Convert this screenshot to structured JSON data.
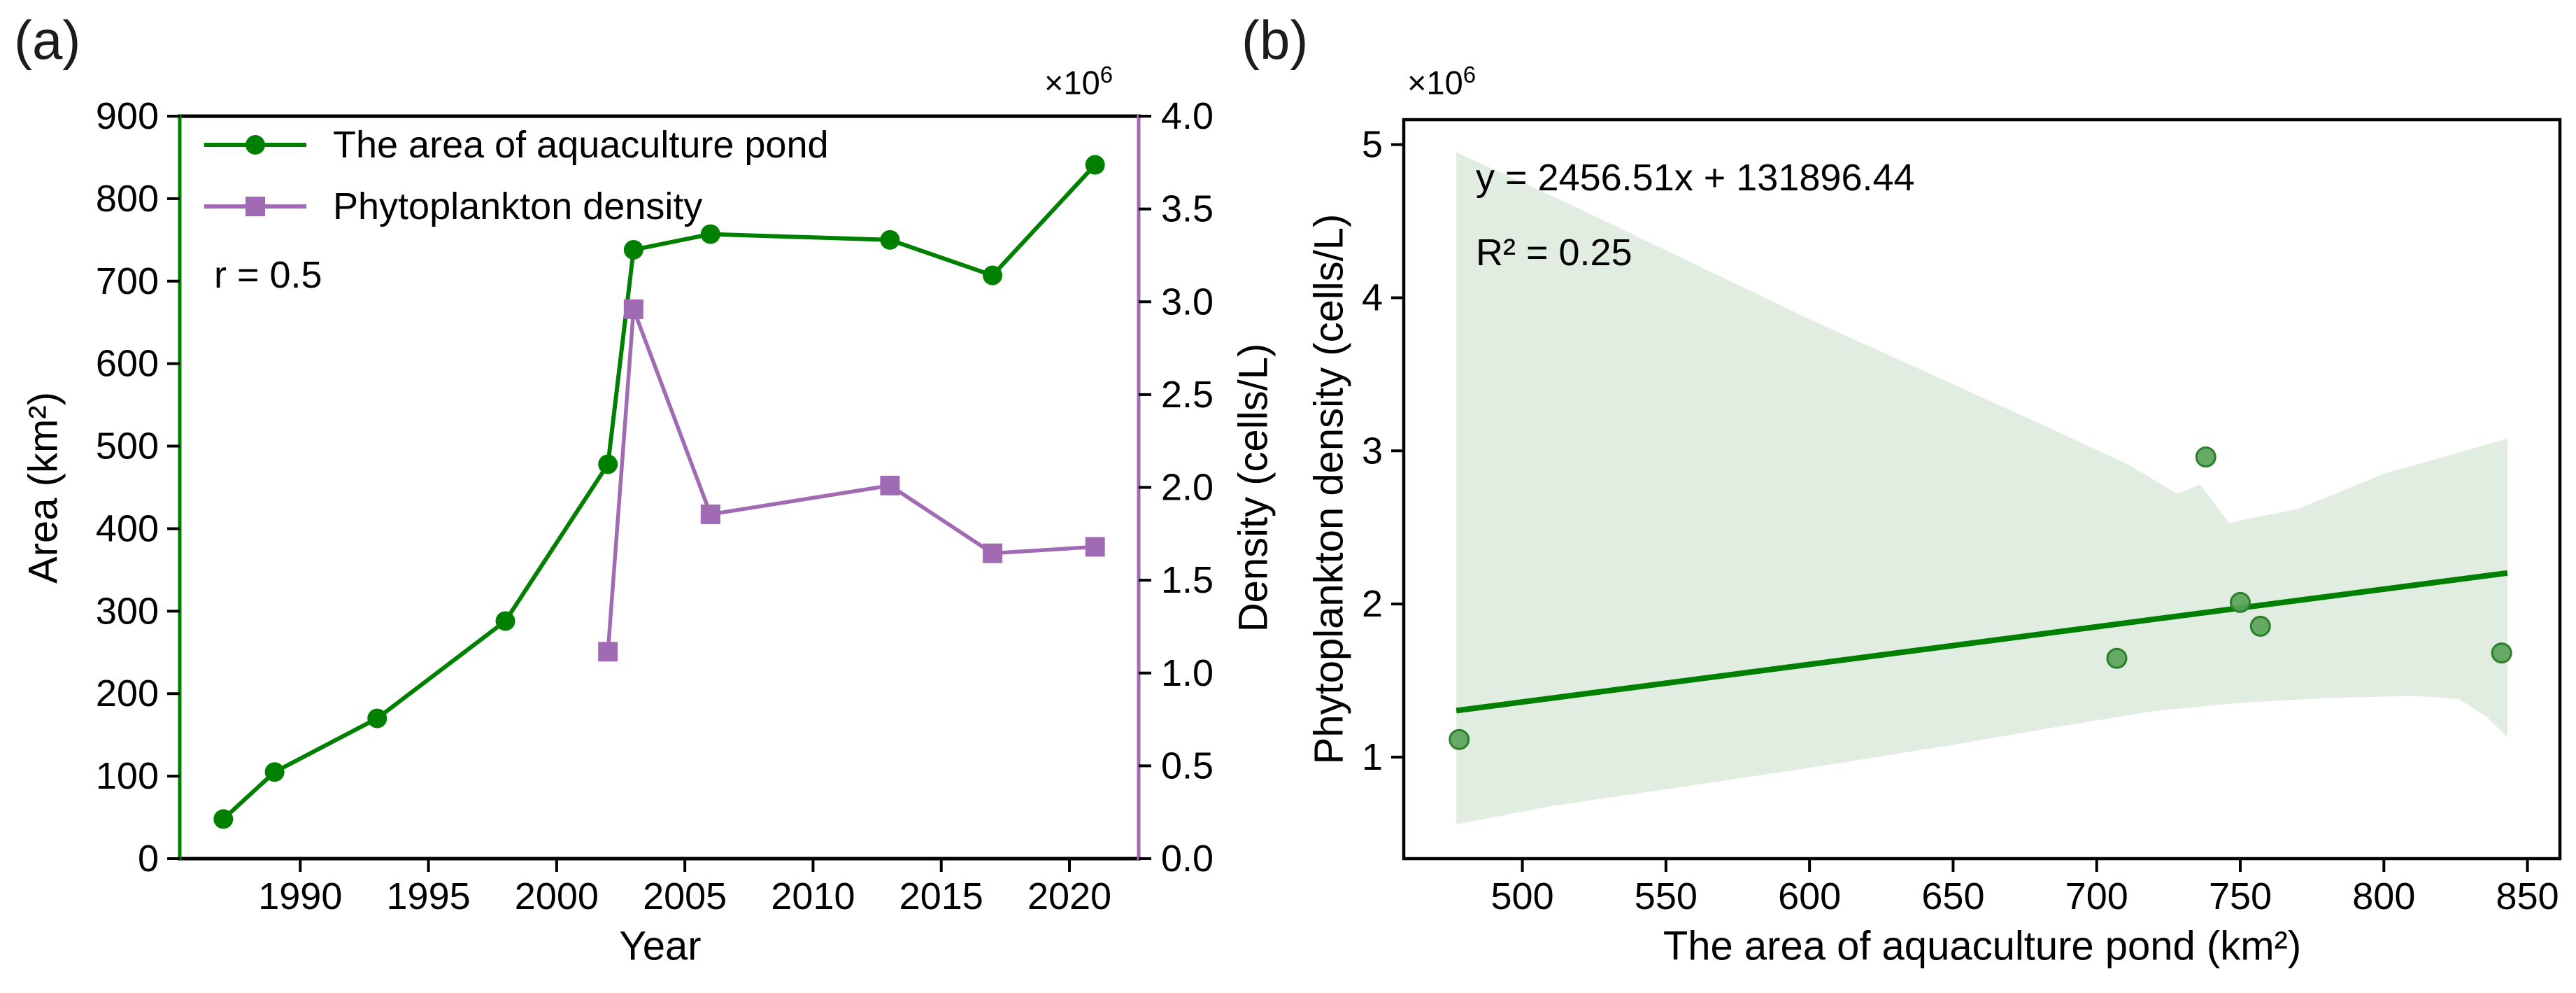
{
  "panel_a": {
    "label": "(a)",
    "annotation_r": "r = 0.5",
    "xlabel": "Year",
    "ylabel_left": "Area (km²)",
    "ylabel_right": "Density (cells/L)",
    "offset_base": "×10",
    "offset_exp": "6",
    "legend": [
      {
        "label": "The area of aquaculture pond"
      },
      {
        "label": "Phytoplankton density"
      }
    ]
  },
  "panel_b": {
    "label": "(b)",
    "equation": "y = 2456.51x + 131896.44",
    "r_squared": "R² = 0.25",
    "xlabel": "The area of aquaculture pond (km²)",
    "ylabel": "Phytoplankton density (cells/L)",
    "offset_base": "×10",
    "offset_exp": "6"
  },
  "colors": {
    "area_green": "#008000",
    "density_purple": "#a16bb4",
    "band_green": "#e1ede0",
    "scatter_fill": "#57a257",
    "scatter_edge": "#2c7e2c",
    "regression_green": "#008000",
    "axis_black": "#000000"
  },
  "chart_data": [
    {
      "id": "a",
      "type": "line",
      "xlabel": "Year",
      "ylabel_left": "Area (km²)",
      "ylabel_right": "Density (cells/L)",
      "annotation": "r = 0.5",
      "xlim": [
        1985.3,
        2022.7
      ],
      "x_ticks": [
        1990,
        1995,
        2000,
        2005,
        2010,
        2015,
        2020
      ],
      "ylim_left": [
        0,
        900
      ],
      "y_ticks_left": [
        0,
        100,
        200,
        300,
        400,
        500,
        600,
        700,
        800,
        900
      ],
      "ylim_right": [
        0,
        4
      ],
      "y_ticks_right": [
        0.0,
        0.5,
        1.0,
        1.5,
        2.0,
        2.5,
        3.0,
        3.5,
        4.0
      ],
      "y_right_unit": "×10⁶ cells/L",
      "legend_position": "upper left",
      "series": [
        {
          "name": "The area of aquaculture pond",
          "axis": "left",
          "marker": "circle",
          "x": [
            1987,
            1989,
            1993,
            1998,
            2002,
            2003,
            2006,
            2013,
            2017,
            2021
          ],
          "y": [
            48,
            105,
            170,
            288,
            478,
            738,
            757,
            750,
            707,
            841
          ]
        },
        {
          "name": "Phytoplankton density",
          "axis": "right",
          "marker": "square",
          "x": [
            2002,
            2003,
            2006,
            2013,
            2017,
            2021
          ],
          "y": [
            1.115,
            2.96,
            1.855,
            2.01,
            1.645,
            1.68
          ]
        }
      ]
    },
    {
      "id": "b",
      "type": "scatter",
      "xlabel": "The area of aquaculture pond (km²)",
      "ylabel": "Phytoplankton density (cells/L)",
      "equation": "y = 2456.51x + 131896.44",
      "r_squared": "R² = 0.25",
      "xlim": [
        458.7,
        861.3
      ],
      "x_ticks": [
        500,
        550,
        600,
        650,
        700,
        750,
        800,
        850
      ],
      "ylim": [
        0.337,
        5.163
      ],
      "y_ticks": [
        1,
        2,
        3,
        4,
        5
      ],
      "y_unit": "×10⁶ cells/L",
      "points": {
        "x": [
          478,
          707,
          738,
          750,
          757,
          841
        ],
        "y": [
          1.115,
          1.645,
          2.96,
          2.01,
          1.855,
          1.68
        ]
      },
      "regression_line": {
        "x": [
          477,
          843
        ],
        "y": [
          1.3035,
          2.2026
        ]
      },
      "confidence_band": {
        "x_upper": [
          477,
          520,
          560,
          600,
          640,
          680,
          710,
          728,
          736,
          746,
          770,
          800,
          843
        ],
        "y_upper": [
          4.95,
          4.58,
          4.22,
          3.86,
          3.52,
          3.18,
          2.92,
          2.72,
          2.78,
          2.53,
          2.62,
          2.85,
          3.08
        ],
        "x_lower": [
          477,
          510,
          550,
          600,
          650,
          690,
          720,
          750,
          780,
          810,
          826,
          836,
          843
        ],
        "y_lower": [
          0.56,
          0.68,
          0.79,
          0.93,
          1.08,
          1.21,
          1.3,
          1.355,
          1.385,
          1.4,
          1.38,
          1.26,
          1.13
        ]
      }
    }
  ]
}
